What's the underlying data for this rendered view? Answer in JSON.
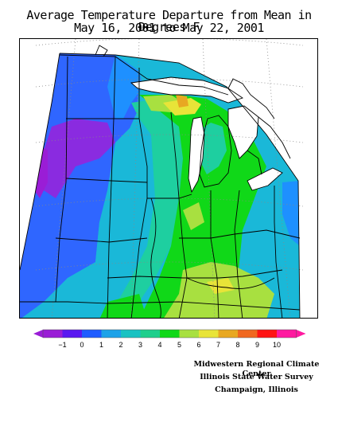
{
  "title": {
    "line1": "Average Temperature Departure from Mean in Degrees F",
    "line2": "May 16, 2001 to May 22, 2001"
  },
  "legend": {
    "ticks": [
      "−1",
      "0",
      "1",
      "2",
      "3",
      "4",
      "5",
      "6",
      "7",
      "8",
      "9",
      "10"
    ],
    "colors": [
      "#9a1dd6",
      "#5a18f0",
      "#1f5cff",
      "#1da2e8",
      "#19c2c2",
      "#1ecf8c",
      "#10d818",
      "#a8e040",
      "#e8e438",
      "#e8a822",
      "#f06820",
      "#ff1414",
      "#ff1aa0"
    ]
  },
  "credits": {
    "line1": "Midwestern Regional Climate Center",
    "line2": "Illinois State Water Survey",
    "line3": "Champaign, Illinois"
  },
  "map": {
    "region": "Midwest United States",
    "palette": {
      "purple": "#8a2be0",
      "blue_dark": "#2f66ff",
      "blue": "#1e90ff",
      "cyan": "#1ab8d8",
      "teal": "#1ecfa0",
      "green": "#10d818",
      "lime": "#a8e040",
      "yellow": "#e8e438",
      "orange": "#e8a822",
      "water": "#ffffff",
      "border": "#000000",
      "graticule": "#888888"
    }
  }
}
